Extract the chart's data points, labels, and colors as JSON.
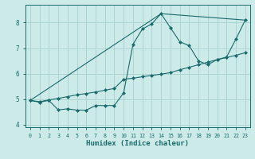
{
  "xlabel": "Humidex (Indice chaleur)",
  "bg_color": "#cceae8",
  "grid_color": "#aad4d2",
  "line_color": "#1a6b6b",
  "xlim": [
    -0.5,
    23.5
  ],
  "ylim": [
    3.9,
    8.7
  ],
  "yticks": [
    4,
    5,
    6,
    7,
    8
  ],
  "xticks": [
    0,
    1,
    2,
    3,
    4,
    5,
    6,
    7,
    8,
    9,
    10,
    11,
    12,
    13,
    14,
    15,
    16,
    17,
    18,
    19,
    20,
    21,
    22,
    23
  ],
  "line2_x": [
    0,
    1,
    2,
    3,
    4,
    5,
    6,
    7,
    8,
    9,
    10,
    11,
    12,
    13,
    14,
    15,
    16,
    17,
    18,
    19,
    20,
    21,
    22,
    23
  ],
  "line2_y": [
    4.95,
    4.88,
    4.95,
    4.58,
    4.62,
    4.57,
    4.57,
    4.75,
    4.75,
    4.75,
    5.25,
    7.15,
    7.75,
    7.95,
    8.35,
    7.8,
    7.25,
    7.1,
    6.5,
    6.35,
    6.55,
    6.65,
    7.35,
    8.1
  ],
  "line1_x": [
    0,
    1,
    2,
    3,
    4,
    5,
    6,
    7,
    8,
    9,
    10,
    11,
    12,
    13,
    14,
    15,
    16,
    17,
    18,
    19,
    20,
    21,
    22,
    23
  ],
  "line1_y": [
    4.95,
    4.9,
    4.97,
    5.03,
    5.1,
    5.17,
    5.22,
    5.28,
    5.35,
    5.42,
    5.78,
    5.82,
    5.88,
    5.93,
    5.98,
    6.04,
    6.15,
    6.25,
    6.35,
    6.45,
    6.55,
    6.63,
    6.72,
    6.82
  ],
  "line3_x": [
    0,
    14,
    23
  ],
  "line3_y": [
    4.95,
    8.35,
    8.1
  ],
  "marker": "D",
  "marker_size": 2.5
}
